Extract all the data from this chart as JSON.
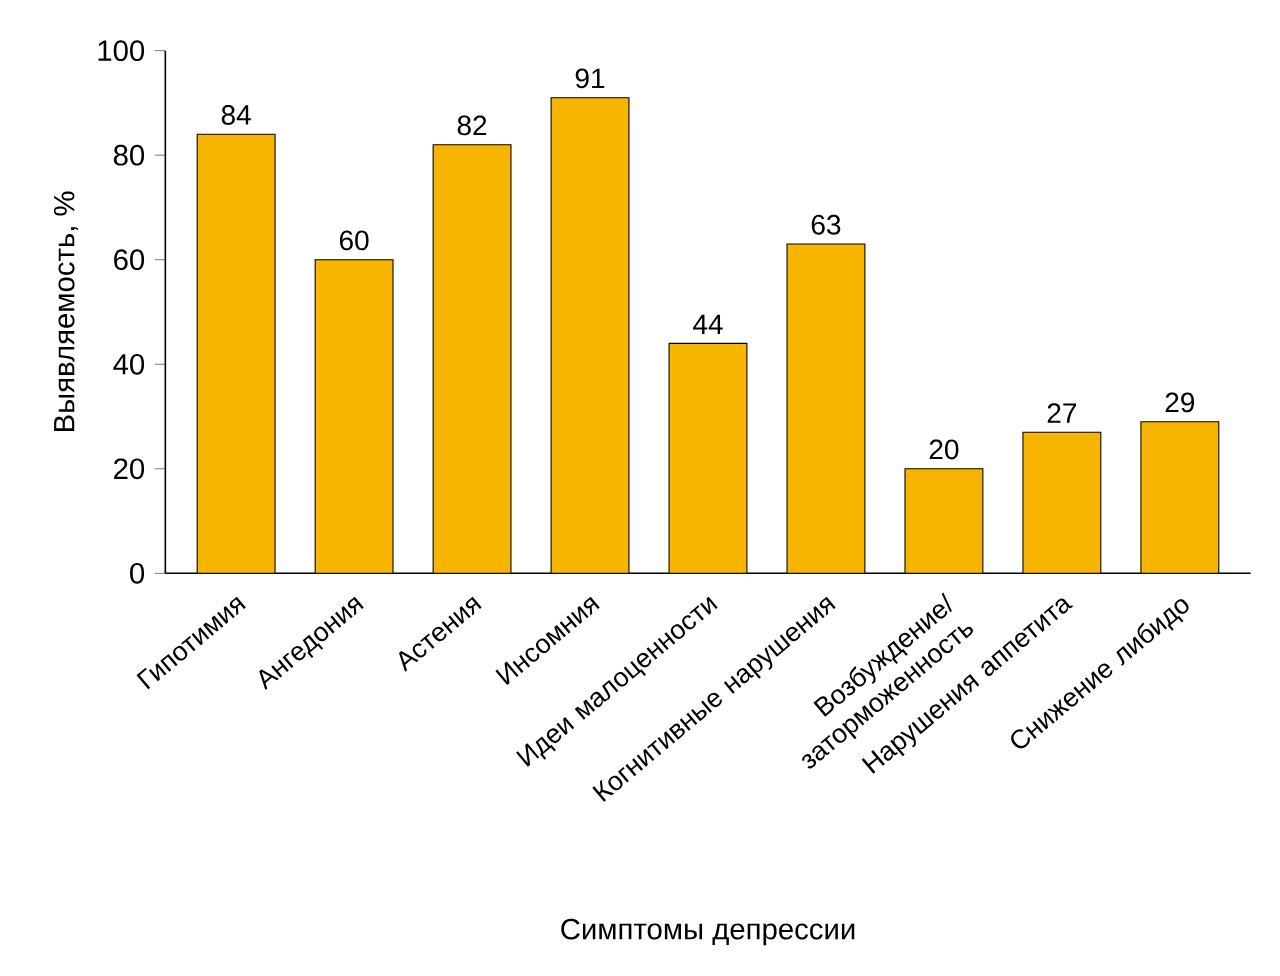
{
  "chart_data": {
    "type": "bar",
    "xlabel": "Симптомы депрессии",
    "ylabel": "Выявляемость, %",
    "categories": [
      "Гипотимия",
      "Ангедония",
      "Астения",
      "Инсомния",
      "Идеи малоценности",
      "Когнитивные нарушения",
      "Возбуждение/ заторможенность",
      "Нарушения аппетита",
      "Снижение либидо"
    ],
    "values": [
      84,
      60,
      82,
      91,
      44,
      63,
      20,
      27,
      29
    ],
    "color": "#f7b500",
    "ylim": [
      0,
      100
    ],
    "yticks": [
      0,
      20,
      40,
      60,
      80,
      100
    ],
    "data_labels": true
  }
}
